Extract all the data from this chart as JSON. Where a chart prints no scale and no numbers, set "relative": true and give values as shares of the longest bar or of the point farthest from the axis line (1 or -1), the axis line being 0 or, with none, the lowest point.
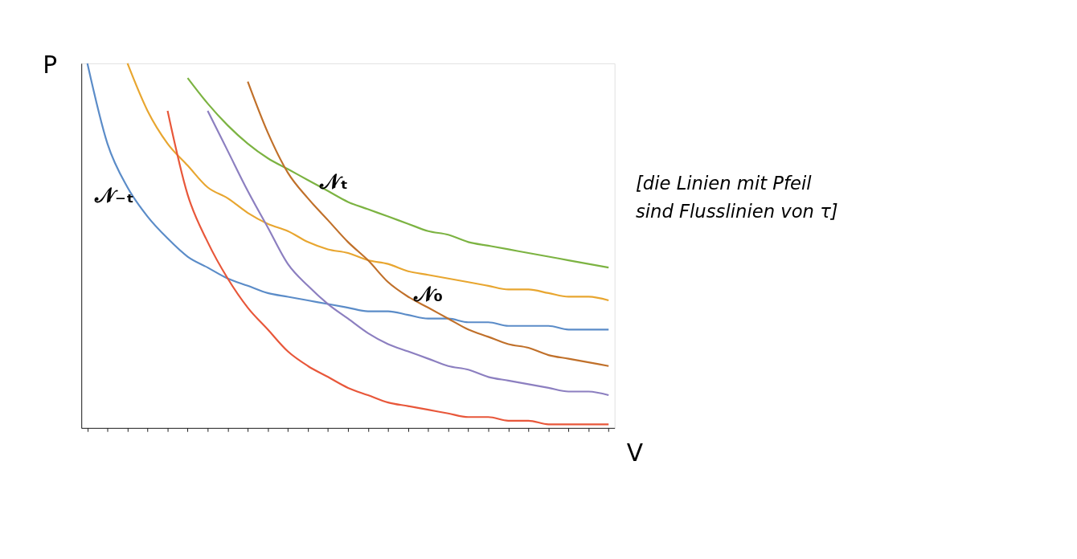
{
  "chart_data": {
    "type": "line",
    "relative": true,
    "xlabel": "V",
    "ylabel": "P",
    "categories": [
      null,
      null,
      null,
      null,
      null,
      null,
      null,
      null,
      null,
      null,
      null,
      null,
      null,
      null,
      null,
      null,
      null,
      null,
      null,
      null,
      null,
      null,
      null,
      null,
      null,
      null,
      null
    ],
    "series": [
      {
        "name": "𝒩₋ₜ",
        "color": "#5b8cc8",
        "values": [
          1.0,
          0.78,
          0.66,
          0.58,
          0.52,
          0.47,
          0.44,
          0.41,
          0.39,
          0.37,
          0.36,
          0.35,
          0.34,
          0.33,
          0.32,
          0.32,
          0.31,
          0.3,
          0.3,
          0.29,
          0.29,
          0.28,
          0.28,
          0.28,
          0.27,
          0.27,
          0.27
        ]
      },
      {
        "name": "𝒩₀",
        "color": "#e8a630",
        "values": [
          null,
          null,
          1.0,
          0.87,
          0.78,
          0.72,
          0.66,
          0.63,
          0.59,
          0.56,
          0.54,
          0.51,
          0.49,
          0.48,
          0.46,
          0.45,
          0.43,
          0.42,
          0.41,
          0.4,
          0.39,
          0.38,
          0.38,
          0.37,
          0.36,
          0.36,
          0.35
        ]
      },
      {
        "name": "𝒩ₜ",
        "color": "#7cb342",
        "values": [
          null,
          null,
          null,
          null,
          null,
          0.96,
          0.89,
          0.83,
          0.78,
          0.74,
          0.71,
          0.68,
          0.65,
          0.62,
          0.6,
          0.58,
          0.56,
          0.54,
          0.53,
          0.51,
          0.5,
          0.49,
          0.48,
          0.47,
          0.46,
          0.45,
          0.44
        ]
      },
      {
        "color": "#e8573a",
        "values": [
          null,
          null,
          null,
          null,
          0.87,
          0.64,
          0.51,
          0.41,
          0.33,
          0.27,
          0.21,
          0.17,
          0.14,
          0.11,
          0.09,
          0.07,
          0.06,
          0.05,
          0.04,
          0.03,
          0.03,
          0.02,
          0.02,
          0.01,
          0.01,
          0.01,
          0.01
        ]
      },
      {
        "color": "#8c7fc0",
        "values": [
          null,
          null,
          null,
          null,
          null,
          null,
          0.87,
          0.76,
          0.65,
          0.55,
          0.45,
          0.39,
          0.34,
          0.3,
          0.26,
          0.23,
          0.21,
          0.19,
          0.17,
          0.16,
          0.14,
          0.13,
          0.12,
          0.11,
          0.1,
          0.1,
          0.09
        ]
      },
      {
        "color": "#c0702a",
        "values": [
          null,
          null,
          null,
          null,
          null,
          null,
          null,
          null,
          0.95,
          0.81,
          0.7,
          0.63,
          0.57,
          0.51,
          0.46,
          0.4,
          0.36,
          0.33,
          0.3,
          0.27,
          0.25,
          0.23,
          0.22,
          0.2,
          0.19,
          0.18,
          0.17
        ]
      }
    ],
    "legend": false,
    "annotations": [
      "[die Linien mit Pfeil sind Flusslinien von τ]"
    ]
  }
}
